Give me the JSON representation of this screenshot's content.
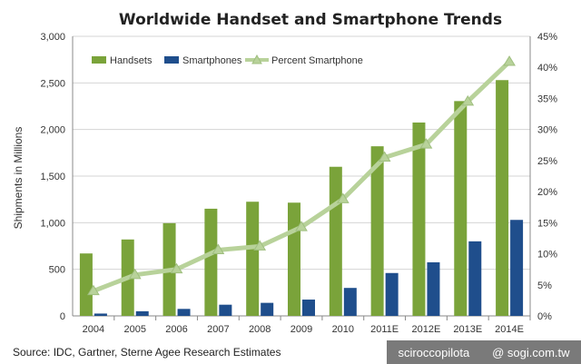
{
  "chart_data": {
    "type": "bar",
    "title": "Worldwide Handset and Smartphone Trends",
    "ylabel": "Shipments in Millions",
    "categories": [
      "2004",
      "2005",
      "2006",
      "2007",
      "2008",
      "2009",
      "2010",
      "2011E",
      "2012E",
      "2013E",
      "2014E"
    ],
    "ylim": [
      0,
      3000
    ],
    "y_ticks": [
      "0",
      "500",
      "1,000",
      "1,500",
      "2,000",
      "2,500",
      "3,000"
    ],
    "y2lim": [
      0,
      45
    ],
    "y2_ticks": [
      "0%",
      "5%",
      "10%",
      "15%",
      "20%",
      "25%",
      "30%",
      "35%",
      "40%",
      "45%"
    ],
    "legend_position": "top-left",
    "grid": true,
    "series": [
      {
        "name": "Handsets",
        "type": "bar",
        "axis": "left",
        "color": "#7aa33a",
        "values": [
          670,
          820,
          995,
          1150,
          1225,
          1215,
          1600,
          1820,
          2075,
          2305,
          2530
        ]
      },
      {
        "name": "Smartphones",
        "type": "bar",
        "axis": "left",
        "color": "#1f4e8c",
        "values": [
          25,
          50,
          75,
          120,
          140,
          175,
          300,
          460,
          575,
          800,
          1030
        ]
      },
      {
        "name": "Percent Smartphone",
        "type": "line",
        "axis": "right",
        "color": "#b8d29a",
        "values": [
          4.0,
          6.6,
          7.5,
          10.6,
          11.2,
          14.3,
          18.8,
          25.5,
          27.6,
          34.5,
          40.9
        ]
      }
    ]
  },
  "source": "Source: IDC, Gartner, Sterne Agee Research Estimates",
  "watermark": {
    "left": "sciroccopilota",
    "right": "@ sogi.com.tw"
  }
}
